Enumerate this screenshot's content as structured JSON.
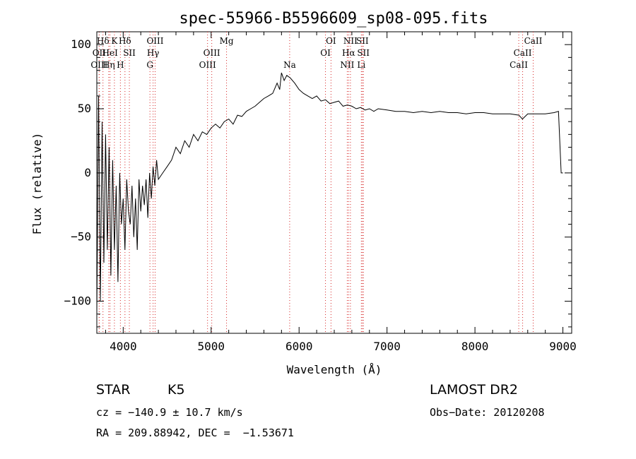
{
  "chart_data": {
    "type": "line",
    "title": "spec-55966-B5596609_sp08-095.fits",
    "xlabel": "Wavelength (Å)",
    "ylabel": "Flux (relative)",
    "xlim": [
      3700,
      9100
    ],
    "ylim": [
      -125,
      110
    ],
    "x_ticks": [
      4000,
      5000,
      6000,
      7000,
      8000,
      9000
    ],
    "y_ticks": [
      -100,
      -50,
      0,
      50,
      100
    ],
    "grid": false,
    "series": [
      {
        "x": [
          3700,
          3720,
          3740,
          3760,
          3780,
          3800,
          3820,
          3840,
          3860,
          3880,
          3900,
          3920,
          3940,
          3960,
          3980,
          4000,
          4020,
          4040,
          4060,
          4080,
          4100,
          4120,
          4140,
          4160,
          4180,
          4200,
          4220,
          4240,
          4260,
          4280,
          4300,
          4320,
          4340,
          4360,
          4380,
          4400,
          4450,
          4500,
          4550,
          4600,
          4650,
          4700,
          4750,
          4800,
          4850,
          4900,
          4950,
          5000,
          5050,
          5100,
          5150,
          5200,
          5250,
          5300,
          5350,
          5400,
          5450,
          5500,
          5550,
          5600,
          5650,
          5700,
          5750,
          5780,
          5800,
          5830,
          5860,
          5900,
          5950,
          6000,
          6050,
          6100,
          6150,
          6200,
          6250,
          6300,
          6350,
          6400,
          6450,
          6500,
          6550,
          6600,
          6650,
          6700,
          6750,
          6800,
          6850,
          6900,
          7000,
          7100,
          7200,
          7300,
          7400,
          7500,
          7600,
          7700,
          7800,
          7900,
          8000,
          8100,
          8200,
          8300,
          8400,
          8500,
          8540,
          8600,
          8700,
          8800,
          8900,
          8950,
          8980,
          9000
        ],
        "y": [
          -110,
          60,
          -100,
          40,
          -70,
          30,
          -60,
          20,
          -80,
          10,
          -60,
          -10,
          -85,
          0,
          -40,
          -20,
          -60,
          -5,
          -30,
          -40,
          -10,
          -50,
          -20,
          -60,
          -5,
          -30,
          -10,
          -25,
          -5,
          -35,
          0,
          -20,
          5,
          -10,
          10,
          -5,
          0,
          5,
          10,
          20,
          15,
          25,
          20,
          30,
          25,
          32,
          30,
          35,
          38,
          35,
          40,
          42,
          38,
          45,
          44,
          48,
          50,
          52,
          55,
          58,
          60,
          62,
          70,
          65,
          78,
          72,
          76,
          74,
          70,
          65,
          62,
          60,
          58,
          60,
          56,
          57,
          54,
          55,
          56,
          52,
          53,
          52,
          50,
          51,
          49,
          50,
          48,
          50,
          49,
          48,
          48,
          47,
          48,
          47,
          48,
          47,
          47,
          46,
          47,
          47,
          46,
          46,
          46,
          45,
          42,
          46,
          46,
          46,
          47,
          48,
          0,
          0
        ]
      }
    ],
    "spectral_lines": [
      {
        "label": "Hδ",
        "x": 3770,
        "row": 1
      },
      {
        "label": "K",
        "x": 3900,
        "row": 1
      },
      {
        "label": "Hδ",
        "x": 4020,
        "row": 1
      },
      {
        "label": "OII",
        "x": 3727,
        "row": 2
      },
      {
        "label": "HeI",
        "x": 3850,
        "row": 2
      },
      {
        "label": "SII",
        "x": 4070,
        "row": 2
      },
      {
        "label": "OIII",
        "x": 3727,
        "row": 3
      },
      {
        "label": "Hη",
        "x": 3835,
        "row": 3
      },
      {
        "label": "H",
        "x": 3968,
        "row": 3
      },
      {
        "label": "OIII",
        "x": 4363,
        "row": 1
      },
      {
        "label": "Hγ",
        "x": 4340,
        "row": 2
      },
      {
        "label": "G",
        "x": 4304,
        "row": 3
      },
      {
        "label": "Mg",
        "x": 5175,
        "row": 1
      },
      {
        "label": "OIII",
        "x": 5007,
        "row": 2
      },
      {
        "label": "OIII",
        "x": 4959,
        "row": 3
      },
      {
        "label": "Na",
        "x": 5893,
        "row": 3
      },
      {
        "label": "OI",
        "x": 6363,
        "row": 1
      },
      {
        "label": "OI",
        "x": 6300,
        "row": 2
      },
      {
        "label": "NII",
        "x": 6584,
        "row": 1
      },
      {
        "label": "SII",
        "x": 6720,
        "row": 1
      },
      {
        "label": "Hα",
        "x": 6563,
        "row": 2
      },
      {
        "label": "SII",
        "x": 6731,
        "row": 2
      },
      {
        "label": "NII",
        "x": 6548,
        "row": 3
      },
      {
        "label": "Li",
        "x": 6708,
        "row": 3
      },
      {
        "label": "CaII",
        "x": 8662,
        "row": 1
      },
      {
        "label": "CaII",
        "x": 8542,
        "row": 2
      },
      {
        "label": "CaII",
        "x": 8498,
        "row": 3
      }
    ]
  },
  "footer": {
    "object_class": "STAR",
    "subclass": "K5",
    "survey": "LAMOST DR2",
    "cz": "cz = −140.9 ± 10.7 km/s",
    "obs_date": "Obs−Date: 20120208",
    "coords": "RA = 209.88942, DEC =  −1.53671"
  }
}
